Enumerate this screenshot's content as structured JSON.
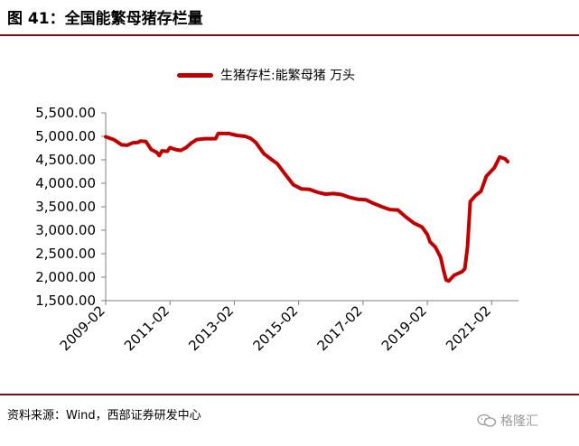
{
  "title": "图 41：全国能繁母猪存栏量",
  "source": "资料来源：Wind，西部证券研发中心",
  "watermark": "格隆汇",
  "colors": {
    "series": "#c00000",
    "rule": "#7a1015",
    "axis": "#7f7f7f"
  },
  "chart_data": {
    "type": "line",
    "legend_position": "top",
    "grid": false,
    "ylim": [
      1500,
      5500
    ],
    "yticks": [
      1500,
      2000,
      2500,
      3000,
      3500,
      4000,
      4500,
      5000,
      5500
    ],
    "ytick_labels": [
      "1,500.00",
      "2,000.00",
      "2,500.00",
      "3,000.00",
      "3,500.00",
      "4,000.00",
      "4,500.00",
      "5,000.00",
      "5,500.00"
    ],
    "xlim": [
      "2009-02",
      "2021-12"
    ],
    "xticks": [
      "2009-02",
      "2011-02",
      "2013-02",
      "2015-02",
      "2017-02",
      "2019-02",
      "2021-02"
    ],
    "series": [
      {
        "name": "生猪存栏:能繁母猪 万头",
        "color": "#c00000",
        "points": [
          [
            "2009-02",
            4990
          ],
          [
            "2009-05",
            4930
          ],
          [
            "2009-08",
            4820
          ],
          [
            "2009-10",
            4810
          ],
          [
            "2009-12",
            4860
          ],
          [
            "2010-02",
            4870
          ],
          [
            "2010-03",
            4900
          ],
          [
            "2010-05",
            4890
          ],
          [
            "2010-07",
            4720
          ],
          [
            "2010-09",
            4660
          ],
          [
            "2010-10",
            4590
          ],
          [
            "2010-11",
            4690
          ],
          [
            "2011-01",
            4680
          ],
          [
            "2011-02",
            4760
          ],
          [
            "2011-04",
            4720
          ],
          [
            "2011-06",
            4700
          ],
          [
            "2011-08",
            4760
          ],
          [
            "2011-10",
            4860
          ],
          [
            "2011-12",
            4930
          ],
          [
            "2012-03",
            4950
          ],
          [
            "2012-06",
            4950
          ],
          [
            "2012-07",
            4950
          ],
          [
            "2012-08",
            5060
          ],
          [
            "2012-10",
            5060
          ],
          [
            "2012-12",
            5060
          ],
          [
            "2013-03",
            5020
          ],
          [
            "2013-06",
            5000
          ],
          [
            "2013-08",
            4960
          ],
          [
            "2013-10",
            4870
          ],
          [
            "2014-01",
            4630
          ],
          [
            "2014-04",
            4500
          ],
          [
            "2014-06",
            4420
          ],
          [
            "2014-09",
            4190
          ],
          [
            "2014-12",
            3970
          ],
          [
            "2015-03",
            3880
          ],
          [
            "2015-06",
            3870
          ],
          [
            "2015-09",
            3810
          ],
          [
            "2015-12",
            3770
          ],
          [
            "2016-03",
            3780
          ],
          [
            "2016-06",
            3760
          ],
          [
            "2016-09",
            3700
          ],
          [
            "2016-12",
            3660
          ],
          [
            "2017-03",
            3650
          ],
          [
            "2017-06",
            3570
          ],
          [
            "2017-09",
            3500
          ],
          [
            "2017-12",
            3440
          ],
          [
            "2018-03",
            3430
          ],
          [
            "2018-06",
            3280
          ],
          [
            "2018-09",
            3150
          ],
          [
            "2018-12",
            3070
          ],
          [
            "2019-02",
            2910
          ],
          [
            "2019-03",
            2750
          ],
          [
            "2019-05",
            2640
          ],
          [
            "2019-07",
            2420
          ],
          [
            "2019-08",
            2160
          ],
          [
            "2019-09",
            1940
          ],
          [
            "2019-10",
            1920
          ],
          [
            "2019-12",
            2040
          ],
          [
            "2020-03",
            2120
          ],
          [
            "2020-04",
            2180
          ],
          [
            "2020-05",
            2650
          ],
          [
            "2020-06",
            3610
          ],
          [
            "2020-08",
            3740
          ],
          [
            "2020-10",
            3830
          ],
          [
            "2020-12",
            4150
          ],
          [
            "2021-03",
            4330
          ],
          [
            "2021-05",
            4560
          ],
          [
            "2021-07",
            4520
          ],
          [
            "2021-08",
            4460
          ]
        ]
      }
    ]
  }
}
